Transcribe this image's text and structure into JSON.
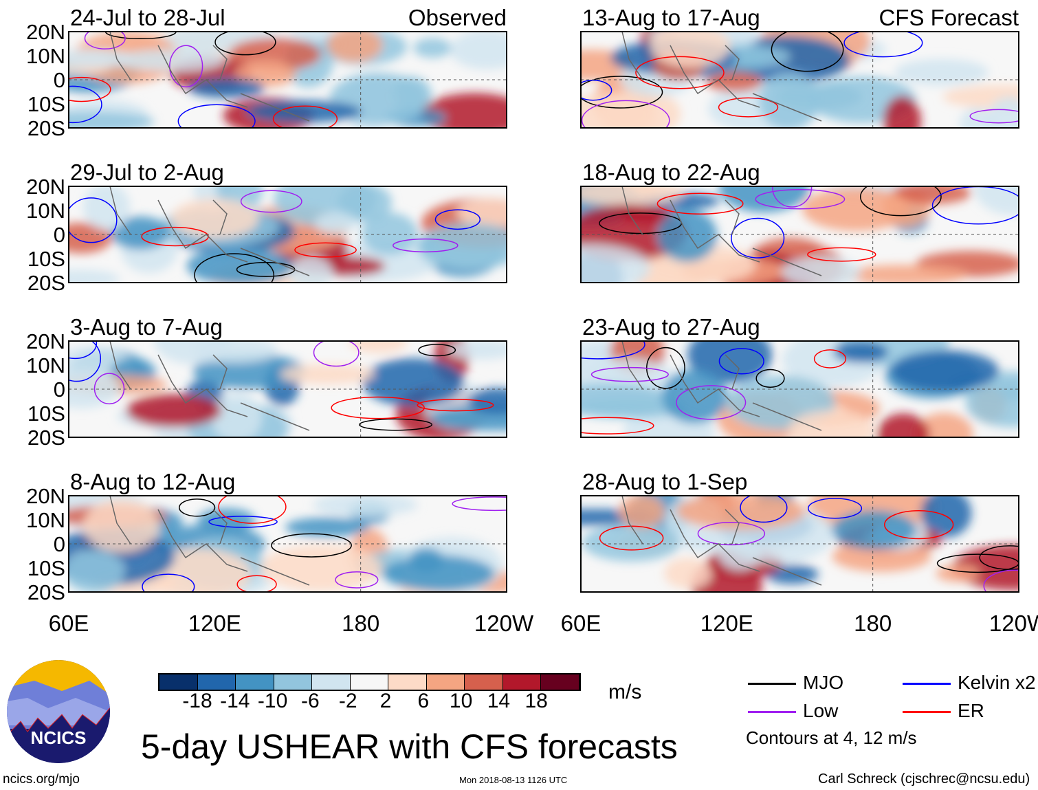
{
  "chart_data": {
    "type": "heatmap",
    "title": "5-day USHEAR with CFS forecasts",
    "units": "m/s",
    "column_labels": [
      "Observed",
      "CFS Forecast"
    ],
    "panels": [
      {
        "title": "24-Jul to 28-Jul",
        "column": "Observed"
      },
      {
        "title": "29-Jul to 2-Aug",
        "column": "Observed"
      },
      {
        "title": "3-Aug to 7-Aug",
        "column": "Observed"
      },
      {
        "title": "8-Aug to 12-Aug",
        "column": "Observed"
      },
      {
        "title": "13-Aug to 17-Aug",
        "column": "CFS Forecast"
      },
      {
        "title": "18-Aug to 22-Aug",
        "column": "CFS Forecast"
      },
      {
        "title": "23-Aug to 27-Aug",
        "column": "CFS Forecast"
      },
      {
        "title": "28-Aug to 1-Sep",
        "column": "CFS Forecast"
      }
    ],
    "lat_ticks": [
      "20N",
      "10N",
      "0",
      "10S",
      "20S"
    ],
    "lon_ticks": [
      "60E",
      "120E",
      "180",
      "120W"
    ],
    "colorbar": {
      "ticks": [
        "-18",
        "-14",
        "-10",
        "-6",
        "-2",
        "2",
        "6",
        "10",
        "14",
        "18"
      ],
      "colors": [
        "#08306b",
        "#2166ac",
        "#4393c3",
        "#92c5de",
        "#d1e5f0",
        "#f7f7f7",
        "#fddbc7",
        "#f4a582",
        "#d6604d",
        "#b2182b",
        "#67001f"
      ]
    },
    "legend": [
      {
        "label": "MJO",
        "color": "#000000"
      },
      {
        "label": "Kelvin x2",
        "color": "#0000ff"
      },
      {
        "label": "Low",
        "color": "#a020f0"
      },
      {
        "label": "ER",
        "color": "#ff0000"
      }
    ],
    "contour_note": "Contours at 4, 12 m/s"
  },
  "footer": {
    "site": "ncics.org/mjo",
    "timestamp": "Mon 2018-08-13 1126 UTC",
    "credit": "Carl Schreck (cjschrec@ncsu.edu)",
    "logo_text": "NCICS"
  }
}
